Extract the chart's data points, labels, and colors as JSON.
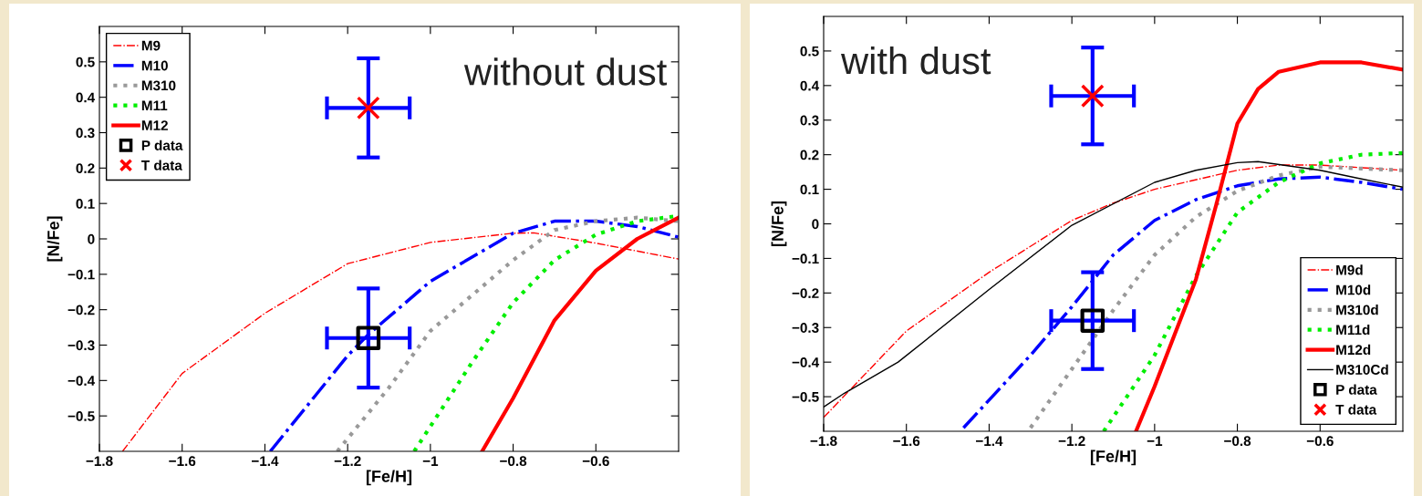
{
  "chart_data": [
    {
      "type": "line",
      "xlabel": "[Fe/H]",
      "ylabel": "[N/Fe]",
      "xlim": [
        -1.8,
        -0.4
      ],
      "ylim": [
        -0.6,
        0.6
      ],
      "xticks": [
        -1.8,
        -1.6,
        -1.4,
        -1.2,
        -1,
        -0.8,
        -0.6
      ],
      "yticks": [
        -0.5,
        -0.4,
        -0.3,
        -0.2,
        -0.1,
        0,
        0.1,
        0.2,
        0.3,
        0.4,
        0.5
      ],
      "legend": "top left",
      "grid": false,
      "annotations": [
        "without dust"
      ],
      "series": [
        {
          "name": "M9",
          "color": "#ff0000",
          "line_style": "dashdot",
          "x": [
            -1.744,
            -1.6,
            -1.4,
            -1.2,
            -1.0,
            -0.8,
            -0.75,
            -0.6,
            -0.4
          ],
          "values": [
            -0.6,
            -0.38,
            -0.21,
            -0.07,
            -0.01,
            0.016,
            0.017,
            -0.012,
            -0.057
          ]
        },
        {
          "name": "M10",
          "color": "#0000ff",
          "line_style": "dashdot",
          "x": [
            -1.387,
            -1.2,
            -1.15,
            -1.0,
            -0.8,
            -0.7,
            -0.6,
            -0.5,
            -0.4
          ],
          "values": [
            -0.6,
            -0.33,
            -0.27,
            -0.12,
            0.016,
            0.05,
            0.05,
            0.035,
            0.005
          ]
        },
        {
          "name": "M310",
          "color": "#999999",
          "line_style": "dotted",
          "x": [
            -1.225,
            -1.1,
            -1.0,
            -0.8,
            -0.7,
            -0.6,
            -0.5,
            -0.4
          ],
          "values": [
            -0.6,
            -0.42,
            -0.26,
            -0.06,
            0.025,
            0.05,
            0.06,
            0.05
          ]
        },
        {
          "name": "M11",
          "color": "#00ee00",
          "line_style": "dotted",
          "x": [
            -1.039,
            -0.9,
            -0.8,
            -0.7,
            -0.6,
            -0.5,
            -0.4
          ],
          "values": [
            -0.6,
            -0.35,
            -0.18,
            -0.06,
            0.012,
            0.05,
            0.065
          ]
        },
        {
          "name": "M12",
          "color": "#ff0000",
          "line_style": "solid",
          "x": [
            -0.875,
            -0.8,
            -0.7,
            -0.6,
            -0.5,
            -0.4
          ],
          "values": [
            -0.6,
            -0.45,
            -0.23,
            -0.09,
            0.0,
            0.06
          ]
        },
        {
          "name": "P data",
          "type": "scatter",
          "marker": "square",
          "color": "#0000ff",
          "colors": [
            "#000000"
          ],
          "x": [
            -1.15
          ],
          "values": [
            -0.28
          ],
          "errors": [
            [
              -0.42,
              -0.14
            ]
          ],
          "xerrors": [
            [
              -1.25,
              -1.05
            ]
          ]
        },
        {
          "name": "T data",
          "type": "scatter",
          "marker": "cross",
          "color": "#0000ff",
          "colors": [
            "#ff0000"
          ],
          "x": [
            -1.15
          ],
          "values": [
            0.37
          ],
          "errors": [
            [
              0.23,
              0.51
            ]
          ],
          "xerrors": [
            [
              -1.25,
              -1.05
            ]
          ]
        }
      ]
    },
    {
      "type": "line",
      "xlabel": "[Fe/H]",
      "ylabel": "[N/Fe]",
      "xlim": [
        -1.8,
        -0.4
      ],
      "ylim": [
        -0.6,
        0.6
      ],
      "xticks": [
        -1.8,
        -1.6,
        -1.4,
        -1.2,
        -1,
        -0.8,
        -0.6
      ],
      "yticks": [
        -0.5,
        -0.4,
        -0.3,
        -0.2,
        -0.1,
        0,
        0.1,
        0.2,
        0.3,
        0.4,
        0.5
      ],
      "legend": "bottom right",
      "grid": false,
      "annotations": [
        "with dust"
      ],
      "series": [
        {
          "name": "M9d",
          "color": "#ff0000",
          "line_style": "dashdot",
          "x": [
            -1.8,
            -1.6,
            -1.4,
            -1.2,
            -1.1,
            -1.0,
            -0.8,
            -0.7,
            -0.6,
            -0.4
          ],
          "values": [
            -0.56,
            -0.31,
            -0.14,
            0.01,
            0.06,
            0.1,
            0.155,
            0.17,
            0.17,
            0.155
          ]
        },
        {
          "name": "M10d",
          "color": "#0000ff",
          "line_style": "dashdot",
          "x": [
            -1.462,
            -1.3,
            -1.2,
            -1.1,
            -1.0,
            -0.9,
            -0.8,
            -0.7,
            -0.6,
            -0.5,
            -0.4
          ],
          "values": [
            -0.59,
            -0.38,
            -0.24,
            -0.09,
            0.01,
            0.07,
            0.11,
            0.13,
            0.135,
            0.12,
            0.1
          ]
        },
        {
          "name": "M310d",
          "color": "#999999",
          "line_style": "dotted",
          "x": [
            -1.3,
            -1.2,
            -1.1,
            -1.0,
            -0.9,
            -0.8,
            -0.7,
            -0.6,
            -0.5,
            -0.4
          ],
          "values": [
            -0.59,
            -0.42,
            -0.25,
            -0.09,
            0.02,
            0.095,
            0.14,
            0.165,
            0.16,
            0.155
          ]
        },
        {
          "name": "M11d",
          "color": "#00ee00",
          "line_style": "dotted",
          "x": [
            -1.123,
            -1.0,
            -0.9,
            -0.8,
            -0.7,
            -0.6,
            -0.5,
            -0.4
          ],
          "values": [
            -0.6,
            -0.38,
            -0.15,
            0.033,
            0.12,
            0.175,
            0.2,
            0.205
          ]
        },
        {
          "name": "M12d",
          "color": "#ff0000",
          "line_style": "solid",
          "x": [
            -1.045,
            -1.0,
            -0.9,
            -0.85,
            -0.8,
            -0.75,
            -0.7,
            -0.6,
            -0.5,
            -0.4
          ],
          "values": [
            -0.6,
            -0.47,
            -0.16,
            0.06,
            0.29,
            0.39,
            0.44,
            0.467,
            0.467,
            0.446
          ]
        },
        {
          "name": "M310Cd",
          "color": "#000000",
          "line_style": "solid",
          "x": [
            -1.8,
            -1.75,
            -1.62,
            -1.4,
            -1.2,
            -1.0,
            -0.9,
            -0.8,
            -0.75,
            -0.6,
            -0.5,
            -0.4
          ],
          "values": [
            -0.53,
            -0.49,
            -0.4,
            -0.19,
            -0.004,
            0.12,
            0.155,
            0.177,
            0.18,
            0.155,
            0.13,
            0.106
          ]
        },
        {
          "name": "P data",
          "type": "scatter",
          "marker": "square",
          "color": "#0000ff",
          "colors": [
            "#000000"
          ],
          "x": [
            -1.15
          ],
          "values": [
            -0.28
          ],
          "errors": [
            [
              -0.42,
              -0.14
            ]
          ],
          "xerrors": [
            [
              -1.25,
              -1.05
            ]
          ]
        },
        {
          "name": "T data",
          "type": "scatter",
          "marker": "cross",
          "color": "#0000ff",
          "colors": [
            "#ff0000"
          ],
          "x": [
            -1.15
          ],
          "values": [
            0.37
          ],
          "errors": [
            [
              0.23,
              0.51
            ]
          ],
          "xerrors": [
            [
              -1.25,
              -1.05
            ]
          ]
        }
      ]
    }
  ]
}
